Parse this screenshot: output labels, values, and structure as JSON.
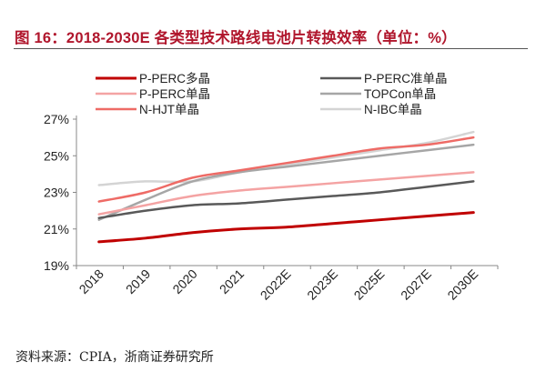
{
  "title": "图 16：2018-2030E 各类型技术路线电池片转换效率（单位：%）",
  "source": "资料来源：CPIA，浙商证券研究所",
  "chart_data": {
    "type": "line",
    "title": "图 16：2018-2030E 各类型技术路线电池片转换效率（单位：%）",
    "xlabel": "",
    "ylabel": "",
    "categories": [
      "2018",
      "2019",
      "2020",
      "2021",
      "2022E",
      "2023E",
      "2025E",
      "2027E",
      "2030E"
    ],
    "ylim": [
      19,
      27
    ],
    "yticks": [
      19,
      21,
      23,
      25,
      27
    ],
    "ytick_labels": [
      "19%",
      "21%",
      "23%",
      "25%",
      "27%"
    ],
    "grid": false,
    "legend_position": "top",
    "series": [
      {
        "name": "P-PERC多晶",
        "color": "#c00000",
        "width": 3,
        "values": [
          20.3,
          20.5,
          20.8,
          21.0,
          21.1,
          21.3,
          21.5,
          21.7,
          21.9
        ]
      },
      {
        "name": "P-PERC准单晶",
        "color": "#595959",
        "width": 2.5,
        "values": [
          21.6,
          22.0,
          22.3,
          22.4,
          22.6,
          22.8,
          23.0,
          23.3,
          23.6
        ]
      },
      {
        "name": "P-PERC单晶",
        "color": "#f4a3a3",
        "width": 2.5,
        "values": [
          21.8,
          22.3,
          22.8,
          23.1,
          23.3,
          23.5,
          23.7,
          23.9,
          24.1
        ]
      },
      {
        "name": "TOPCon单晶",
        "color": "#a6a6a6",
        "width": 2.5,
        "values": [
          21.5,
          22.6,
          23.6,
          24.1,
          24.4,
          24.7,
          25.0,
          25.3,
          25.6
        ]
      },
      {
        "name": "N-HJT单晶",
        "color": "#ee6b66",
        "width": 2.5,
        "values": [
          22.5,
          23.0,
          23.8,
          24.2,
          24.6,
          25.0,
          25.4,
          25.6,
          26.0
        ]
      },
      {
        "name": "N-IBC单晶",
        "color": "#d4d4d4",
        "width": 2.5,
        "values": [
          23.4,
          23.6,
          23.6,
          24.1,
          24.5,
          24.9,
          25.3,
          25.7,
          26.3
        ]
      }
    ]
  }
}
